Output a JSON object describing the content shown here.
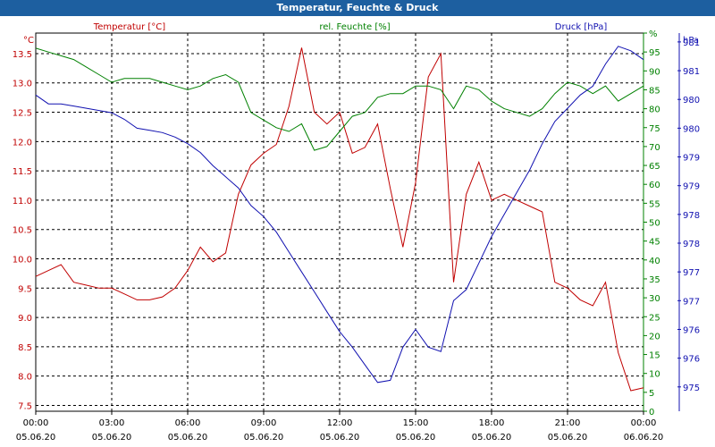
{
  "title": "Temperatur, Feuchte & Druck",
  "chart_data": {
    "type": "line",
    "title": "Temperatur, Feuchte & Druck",
    "grid": true,
    "x": {
      "range": [
        "05.06.20 00:00",
        "06.06.20 00:00"
      ],
      "tick_time_labels": [
        "00:00",
        "03:00",
        "06:00",
        "09:00",
        "12:00",
        "15:00",
        "18:00",
        "21:00",
        "00:00"
      ],
      "tick_date_labels": [
        "05.06.20",
        "05.06.20",
        "05.06.20",
        "05.06.20",
        "05.06.20",
        "05.06.20",
        "05.06.20",
        "05.06.20",
        "06.06.20"
      ]
    },
    "axes": {
      "left": {
        "unit": "°C",
        "ylim": [
          7.4,
          13.85
        ],
        "tick_labels": [
          "7.5",
          "8.0",
          "8.5",
          "9.0",
          "9.5",
          "10.0",
          "10.5",
          "11.0",
          "11.5",
          "12.0",
          "12.5",
          "13.0",
          "13.5"
        ],
        "tick_values": [
          7.5,
          8.0,
          8.5,
          9.0,
          9.5,
          10.0,
          10.5,
          11.0,
          11.5,
          12.0,
          12.5,
          13.0,
          13.5
        ]
      },
      "middle": {
        "unit": "%",
        "ylim": [
          0,
          100
        ],
        "tick_labels": [
          "0",
          "5",
          "10",
          "15",
          "20",
          "25",
          "30",
          "35",
          "40",
          "45",
          "50",
          "55",
          "60",
          "65",
          "70",
          "75",
          "80",
          "85",
          "90",
          "95",
          "%"
        ],
        "tick_values": [
          0,
          5,
          10,
          15,
          20,
          25,
          30,
          35,
          40,
          45,
          50,
          55,
          60,
          65,
          70,
          75,
          80,
          85,
          90,
          95,
          100
        ]
      },
      "right": {
        "unit": "hPa",
        "ylim": [
          974.45,
          983.0
        ],
        "tick_labels": [
          "975",
          "976",
          "976",
          "977",
          "977",
          "978",
          "978",
          "979",
          "979",
          "980",
          "980",
          "981",
          "981",
          "982"
        ],
        "tick_values": [
          975.0,
          975.65,
          976.3,
          976.95,
          977.6,
          978.25,
          978.9,
          979.55,
          980.2,
          980.85,
          981.5,
          982.15,
          982.8,
          983.45
        ]
      }
    },
    "legend": [
      {
        "name": "Temperatur [°C]",
        "color": "#c00000",
        "position": "top-left"
      },
      {
        "name": "rel. Feuchte [%]",
        "color": "#008000",
        "position": "top-center"
      },
      {
        "name": "Druck [hPa]",
        "color": "#1010b0",
        "position": "top-right"
      }
    ],
    "series": [
      {
        "name": "Temperatur [°C]",
        "axis": "left",
        "color": "#c00000",
        "x_hours": [
          0,
          0.5,
          1,
          1.5,
          2,
          2.5,
          3,
          3.5,
          4,
          4.5,
          5,
          5.5,
          6,
          6.5,
          7,
          7.5,
          8,
          8.5,
          9,
          9.5,
          10,
          10.5,
          11,
          11.5,
          12,
          12.5,
          13,
          13.5,
          14,
          14.5,
          15,
          15.5,
          16,
          16.5,
          17,
          17.5,
          18,
          18.5,
          19,
          19.5,
          20,
          20.5,
          21,
          21.5,
          22,
          22.5,
          23,
          23.5,
          24
        ],
        "values": [
          9.7,
          9.8,
          9.9,
          9.6,
          9.55,
          9.5,
          9.5,
          9.4,
          9.3,
          9.3,
          9.35,
          9.5,
          9.8,
          10.2,
          9.95,
          10.1,
          11.1,
          11.6,
          11.8,
          11.95,
          12.6,
          13.6,
          12.5,
          12.3,
          12.5,
          11.8,
          11.9,
          12.3,
          11.2,
          10.2,
          11.3,
          13.1,
          13.5,
          9.6,
          11.1,
          11.65,
          11.0,
          11.1,
          11.0,
          10.9,
          10.8,
          9.6,
          9.5,
          9.3,
          9.2,
          9.6,
          8.4,
          7.75,
          7.8
        ]
      },
      {
        "name": "rel. Feuchte [%]",
        "axis": "middle",
        "color": "#008000",
        "x_hours": [
          0,
          0.5,
          1,
          1.5,
          2,
          2.5,
          3,
          3.5,
          4,
          4.5,
          5,
          5.5,
          6,
          6.5,
          7,
          7.5,
          8,
          8.5,
          9,
          9.5,
          10,
          10.5,
          11,
          11.5,
          12,
          12.5,
          13,
          13.5,
          14,
          14.5,
          15,
          15.5,
          16,
          16.5,
          17,
          17.5,
          18,
          18.5,
          19,
          19.5,
          20,
          20.5,
          21,
          21.5,
          22,
          22.5,
          23,
          23.5,
          24
        ],
        "values": [
          96,
          95,
          94,
          93,
          91,
          89,
          87,
          88,
          88,
          88,
          87,
          86,
          85,
          86,
          88,
          89,
          87,
          79,
          77,
          75,
          74,
          76,
          69,
          70,
          74,
          78,
          79,
          83,
          84,
          84,
          86,
          86,
          85,
          80,
          86,
          85,
          82,
          80,
          79,
          78,
          80,
          84,
          87,
          86,
          84,
          86,
          82,
          84,
          86
        ]
      },
      {
        "name": "Druck [hPa]",
        "axis": "right",
        "color": "#1010b0",
        "x_hours": [
          0,
          0.5,
          1,
          1.5,
          2,
          2.5,
          3,
          3.5,
          4,
          4.5,
          5,
          5.5,
          6,
          6.5,
          7,
          7.5,
          8,
          8.5,
          9,
          9.5,
          10,
          10.5,
          11,
          11.5,
          12,
          12.5,
          13,
          13.5,
          14,
          14.5,
          15,
          15.5,
          16,
          16.5,
          17,
          17.5,
          18,
          18.5,
          19,
          19.5,
          20,
          20.5,
          21,
          21.5,
          22,
          22.5,
          23,
          23.5,
          24
        ],
        "values": [
          981.6,
          981.4,
          981.4,
          981.35,
          981.3,
          981.25,
          981.2,
          981.05,
          980.85,
          980.8,
          980.75,
          980.65,
          980.5,
          980.3,
          980.0,
          979.75,
          979.5,
          979.1,
          978.85,
          978.5,
          978.05,
          977.6,
          977.15,
          976.7,
          976.25,
          975.9,
          975.5,
          975.1,
          975.15,
          975.9,
          976.3,
          975.9,
          975.8,
          976.95,
          977.2,
          977.8,
          978.4,
          978.9,
          979.4,
          979.9,
          980.5,
          981.0,
          981.3,
          981.6,
          981.8,
          982.3,
          982.7,
          982.6,
          982.4
        ]
      }
    ]
  }
}
